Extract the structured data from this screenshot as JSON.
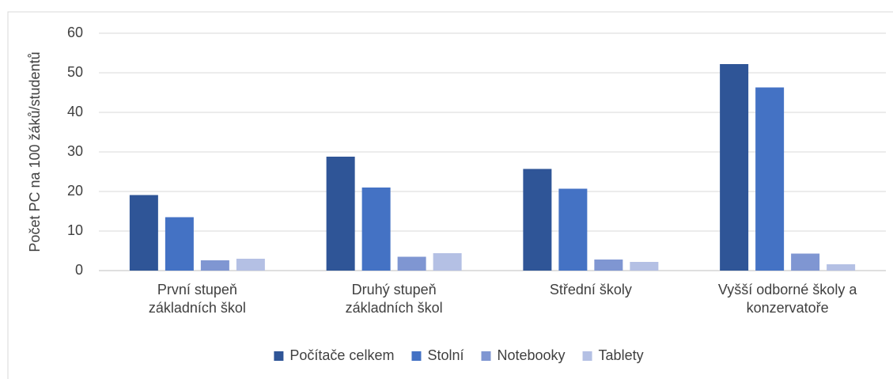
{
  "chart_data": {
    "type": "bar",
    "y_label": "Počet PC na 100 žáků/studentů",
    "categories": [
      "První stupeň základních škol",
      "Druhý stupeň základních škol",
      "Střední školy",
      "Vyšší odborné školy a konzervatoře"
    ],
    "series": [
      {
        "name": "Počítače celkem",
        "color": "#2f5597",
        "values": [
          19.1,
          28.8,
          25.7,
          52.2
        ]
      },
      {
        "name": "Stolní",
        "color": "#4472c4",
        "values": [
          13.5,
          21.0,
          20.7,
          46.3
        ]
      },
      {
        "name": "Notebooky",
        "color": "#7f96d2",
        "values": [
          2.6,
          3.5,
          2.8,
          4.3
        ]
      },
      {
        "name": "Tablety",
        "color": "#b4c0e4",
        "values": [
          3.0,
          4.4,
          2.2,
          1.6
        ]
      }
    ],
    "ylim": [
      0,
      60
    ],
    "yticks": [
      0,
      10,
      20,
      30,
      40,
      50,
      60
    ],
    "grid": true,
    "legend": "bottom"
  }
}
